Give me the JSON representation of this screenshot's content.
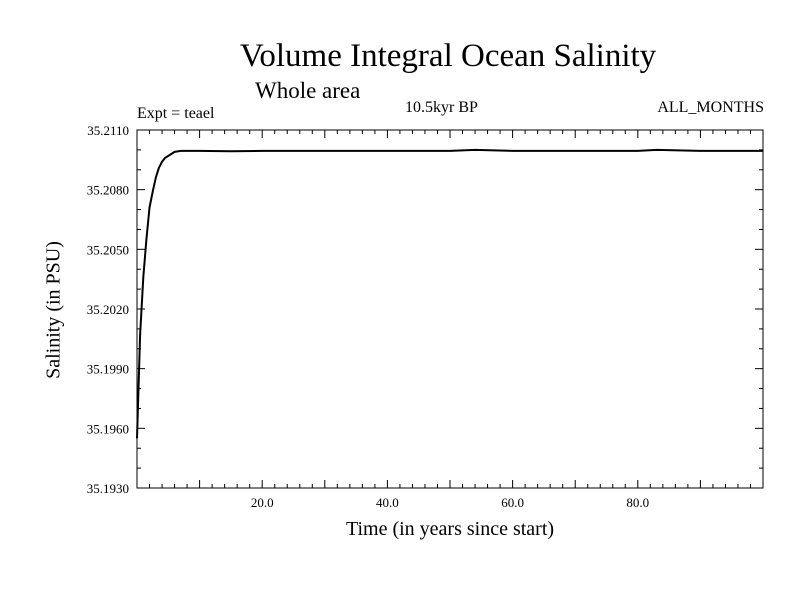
{
  "chart_data": {
    "type": "line",
    "title": "Volume Integral Ocean Salinity",
    "subtitle": "Whole area",
    "annotations": {
      "experiment": "Expt = teael",
      "period": "10.5kyr BP",
      "months": "ALL_MONTHS"
    },
    "xlabel": "Time (in years since start)",
    "ylabel": "Salinity (in PSU)",
    "xlim": [
      0,
      100
    ],
    "ylim": [
      35.193,
      35.211
    ],
    "x_ticks": [
      20,
      40,
      60,
      80
    ],
    "x_tick_labels": [
      "20.0",
      "40.0",
      "60.0",
      "80.0"
    ],
    "y_ticks": [
      35.193,
      35.196,
      35.199,
      35.202,
      35.205,
      35.208,
      35.211
    ],
    "y_tick_labels": [
      "35.1930",
      "35.1960",
      "35.1990",
      "35.2020",
      "35.2050",
      "35.2080",
      "35.2110"
    ],
    "grid": false,
    "series": [
      {
        "name": "Salinity",
        "x": [
          0,
          0.5,
          1,
          1.5,
          2,
          2.5,
          3,
          3.5,
          4,
          4.5,
          5,
          6,
          7,
          8,
          10,
          15,
          20,
          30,
          40,
          50,
          54,
          60,
          70,
          80,
          83,
          90,
          100
        ],
        "y": [
          35.1955,
          35.2007,
          35.2036,
          35.2055,
          35.2071,
          35.2079,
          35.2086,
          35.2091,
          35.2094,
          35.2096,
          35.2097,
          35.2099,
          35.20995,
          35.20995,
          35.20995,
          35.20993,
          35.20995,
          35.20995,
          35.20995,
          35.20995,
          35.21,
          35.20995,
          35.20995,
          35.20995,
          35.21,
          35.20995,
          35.20995
        ]
      }
    ]
  }
}
